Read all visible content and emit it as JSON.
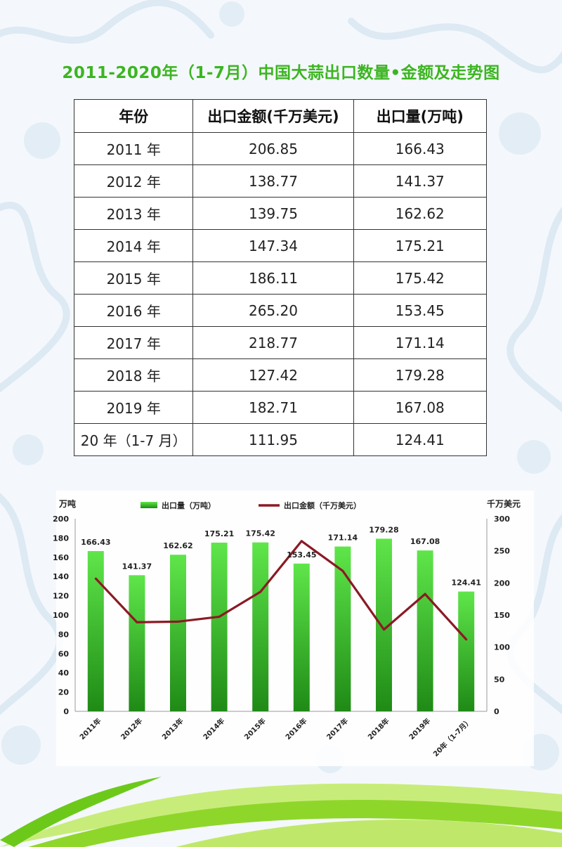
{
  "title": "2011-2020年（1-7月）中国大蒜出口数量•金额及走势图",
  "table": {
    "headers": [
      "年份",
      "出口金额(千万美元)",
      "出口量(万吨)"
    ],
    "rows": [
      [
        "2011 年",
        "206.85",
        "166.43"
      ],
      [
        "2012 年",
        "138.77",
        "141.37"
      ],
      [
        "2013 年",
        "139.75",
        "162.62"
      ],
      [
        "2014 年",
        "147.34",
        "175.21"
      ],
      [
        "2015 年",
        "186.11",
        "175.42"
      ],
      [
        "2016 年",
        "265.20",
        "153.45"
      ],
      [
        "2017 年",
        "218.77",
        "171.14"
      ],
      [
        "2018 年",
        "127.42",
        "179.28"
      ],
      [
        "2019 年",
        "182.71",
        "167.08"
      ],
      [
        "20 年（1-7 月）",
        "111.95",
        "124.41"
      ]
    ]
  },
  "chart_data": {
    "type": "bar",
    "categories": [
      "2011年",
      "2012年",
      "2013年",
      "2014年",
      "2015年",
      "2016年",
      "2017年",
      "2018年",
      "2019年",
      "20年（1-7月）"
    ],
    "series": [
      {
        "name": "出口量（万吨）",
        "type": "bar",
        "axis": "left",
        "values": [
          166.43,
          141.37,
          162.62,
          175.21,
          175.42,
          153.45,
          171.14,
          179.28,
          167.08,
          124.41
        ]
      },
      {
        "name": "出口金额（千万美元）",
        "type": "line",
        "axis": "right",
        "values": [
          206.85,
          138.77,
          139.75,
          147.34,
          186.11,
          265.2,
          218.77,
          127.42,
          182.71,
          111.95
        ]
      }
    ],
    "ylabel_left": "万吨",
    "ylabel_right": "千万美元",
    "ylim_left": [
      0,
      200
    ],
    "ylim_right": [
      0,
      300
    ],
    "yticks_left": [
      0,
      20,
      40,
      60,
      80,
      100,
      120,
      140,
      160,
      180,
      200
    ],
    "yticks_right": [
      0,
      50,
      100,
      150,
      200,
      250,
      300
    ],
    "bar_labels": [
      "166.43",
      "141.37",
      "162.62",
      "175.21",
      "175.42",
      "153.45",
      "171.14",
      "179.28",
      "167.08",
      "124.41"
    ],
    "legend_position": "top",
    "grid": false
  },
  "colors": {
    "title": "#3cb521",
    "bar_top": "#5fe64a",
    "bar_bottom": "#1f8a16",
    "line": "#8b1a24",
    "swoosh": "#8fd62a"
  }
}
